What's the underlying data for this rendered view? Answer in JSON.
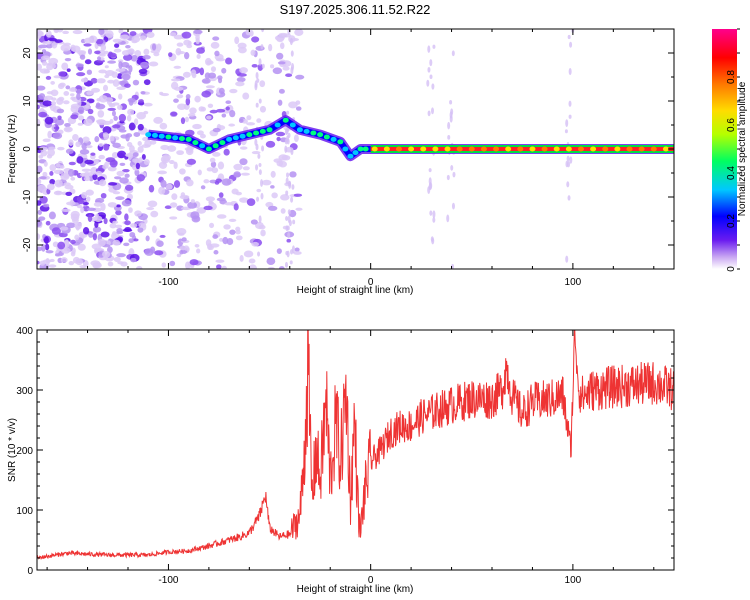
{
  "title": "S197.2025.306.11.52.R22",
  "chart_data": [
    {
      "type": "heatmap",
      "xlabel": "Height of straight line (km)",
      "ylabel": "Frequency (Hz)",
      "xlim": [
        -165,
        150
      ],
      "ylim": [
        -25,
        25
      ],
      "xticks": [
        -100,
        0,
        100
      ],
      "yticks": [
        -20,
        -10,
        0,
        10,
        20
      ],
      "ridge": [
        {
          "x": -110,
          "y": 3
        },
        {
          "x": -100,
          "y": 2.5
        },
        {
          "x": -90,
          "y": 2
        },
        {
          "x": -80,
          "y": 0
        },
        {
          "x": -70,
          "y": 2
        },
        {
          "x": -60,
          "y": 3
        },
        {
          "x": -50,
          "y": 4
        },
        {
          "x": -42,
          "y": 6
        },
        {
          "x": -35,
          "y": 4
        },
        {
          "x": -25,
          "y": 3
        },
        {
          "x": -15,
          "y": 1.5
        },
        {
          "x": -10,
          "y": -1.5
        },
        {
          "x": -5,
          "y": 0
        },
        {
          "x": 0,
          "y": 0
        },
        {
          "x": 150,
          "y": 0
        }
      ],
      "colorbar": {
        "label": "Normalized spectral amplitude",
        "range": [
          0,
          1
        ],
        "ticks": [
          0.0,
          0.2,
          0.4,
          0.6,
          0.8
        ],
        "colors": [
          "#ffffff",
          "#c9a7f2",
          "#6a1cf0",
          "#0000ff",
          "#00c8ff",
          "#00ff60",
          "#b4ff00",
          "#ffdc00",
          "#ff7800",
          "#ff0000",
          "#ff008c"
        ]
      }
    },
    {
      "type": "line",
      "xlabel": "Height of straight line (km)",
      "ylabel": "SNR (10 * v/v)",
      "xlim": [
        -165,
        150
      ],
      "ylim": [
        0,
        400
      ],
      "xticks": [
        -100,
        0,
        100
      ],
      "yticks": [
        0,
        100,
        200,
        300,
        400
      ],
      "color": "#ee3333",
      "series": [
        {
          "name": "SNR",
          "x": [
            -165,
            -150,
            -130,
            -110,
            -100,
            -90,
            -80,
            -70,
            -65,
            -60,
            -55,
            -52,
            -50,
            -45,
            -40,
            -35,
            -33,
            -31,
            -29,
            -27,
            -25,
            -22,
            -20,
            -17,
            -15,
            -12,
            -10,
            -8,
            -6,
            -5,
            -4,
            -2,
            0,
            5,
            10,
            15,
            20,
            25,
            30,
            40,
            50,
            60,
            65,
            67,
            70,
            75,
            80,
            90,
            95,
            99,
            101,
            103,
            105,
            110,
            120,
            130,
            140,
            150
          ],
          "y": [
            20,
            28,
            25,
            25,
            30,
            32,
            40,
            50,
            55,
            62,
            90,
            125,
            70,
            55,
            60,
            90,
            180,
            340,
            120,
            200,
            150,
            280,
            150,
            250,
            180,
            300,
            110,
            250,
            90,
            60,
            100,
            150,
            180,
            200,
            230,
            240,
            240,
            255,
            262,
            275,
            285,
            285,
            300,
            340,
            290,
            260,
            280,
            285,
            292,
            200,
            400,
            300,
            290,
            300,
            305,
            308,
            312,
            300
          ]
        }
      ]
    }
  ]
}
